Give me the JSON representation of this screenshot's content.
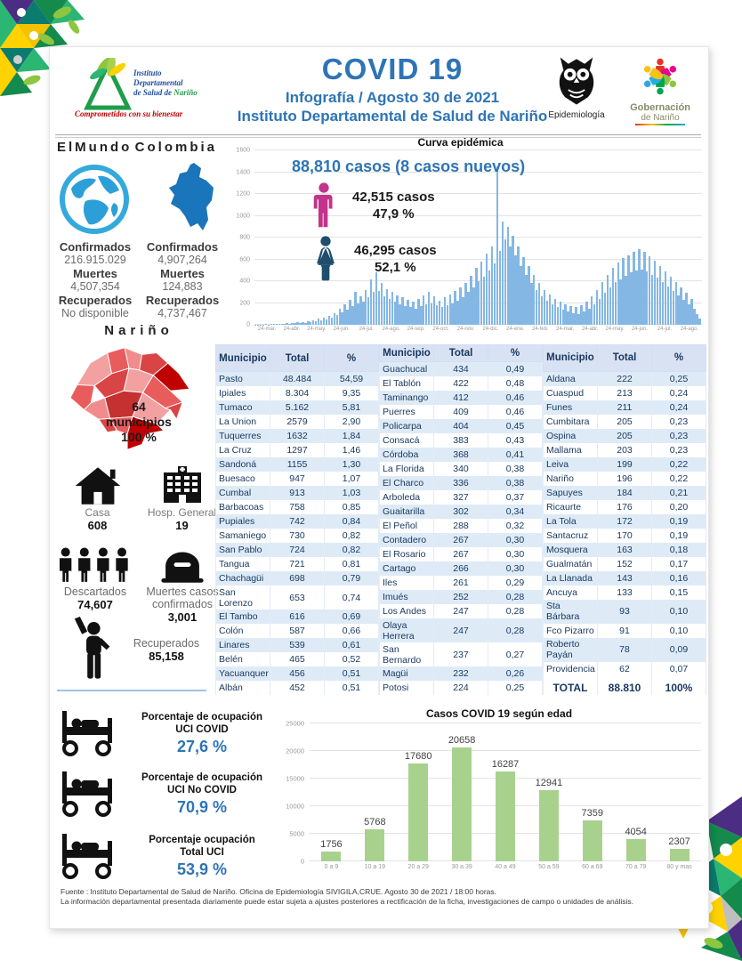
{
  "colors": {
    "accent_blue": "#2E74B5",
    "epi_bar": "#85B7E4",
    "age_bar": "#A9D18E",
    "male_pink": "#C2348B",
    "female_navy": "#1F4E6E",
    "table_text": "#17375E",
    "map_red": "#D94545"
  },
  "header": {
    "title": "COVID 19",
    "subtitle1": "Infografía / Agosto 30 de 2021",
    "subtitle2": "Instituto Departamental de Salud de Nariño",
    "inst_logo": {
      "line1": "Instituto",
      "line2": "Departamental",
      "line3a": "de Salud de ",
      "line3b": "Nariño",
      "tagline": "Comprometidos con su bienestar"
    },
    "owl_label": "Epidemiología",
    "gov_line1": "Gobernación",
    "gov_line2": "de Nariño"
  },
  "world": {
    "title": "ElMundo",
    "confirmados_label": "Confirmados",
    "confirmados": "216.915.029",
    "muertes_label": "Muertes",
    "muertes": "4,507,354",
    "recuperados_label": "Recuperados",
    "recuperados": "No disponible"
  },
  "colombia": {
    "title": "Colombia",
    "confirmados_label": "Confirmados",
    "confirmados": "4,907,264",
    "muertes_label": "Muertes",
    "muertes": "124,883",
    "recuperados_label": "Recuperados",
    "recuperados": "4,737,467"
  },
  "narino": {
    "title": "Nariño",
    "municipios_count": "64",
    "municipios_label": "municipios",
    "municipios_pct": "100 %",
    "casa_label": "Casa",
    "casa_value": "608",
    "hosp_label": "Hosp. General",
    "hosp_value": "19",
    "descartados_label": "Descartados",
    "descartados_value": "74,607",
    "muertes_label": "Muertes casos confirmados",
    "muertes_value": "3,001",
    "recuperados_label": "Recuperados",
    "recuperados_value": "85,158"
  },
  "epi": {
    "headline": "88,810 casos (8 casos nuevos)",
    "male_casos": "42,515 casos",
    "male_pct": "47,9 %",
    "female_casos": "46,295 casos",
    "female_pct": "52,1 %"
  },
  "chart_data": [
    {
      "id": "curva_epidemica",
      "type": "bar",
      "title": "Curva epidémica",
      "ylabel": "",
      "xlabel": "",
      "ylim": [
        0,
        1600
      ],
      "yticks": [
        0,
        200,
        400,
        600,
        800,
        1000,
        1200,
        1400,
        1600
      ],
      "x_tick_labels": [
        "24-mar.",
        "24-abr.",
        "24-may.",
        "24-jun.",
        "24-jul.",
        "24-ago.",
        "24-sep.",
        "24-oct.",
        "24-nov.",
        "24-dic.",
        "24-ene.",
        "24-feb.",
        "24-mar.",
        "24-abr.",
        "24-may.",
        "24-jun.",
        "24-jul.",
        "24-ago."
      ],
      "values": [
        3,
        2,
        4,
        3,
        5,
        4,
        6,
        5,
        8,
        6,
        10,
        8,
        14,
        11,
        18,
        14,
        22,
        17,
        26,
        20,
        32,
        25,
        42,
        33,
        55,
        42,
        68,
        52,
        85,
        65,
        110,
        90,
        150,
        115,
        190,
        140,
        230,
        170,
        300,
        200,
        260,
        210,
        320,
        250,
        420,
        300,
        480,
        310,
        380,
        260,
        330,
        240,
        300,
        210,
        270,
        190,
        250,
        170,
        230,
        160,
        210,
        150,
        240,
        170,
        270,
        190,
        300,
        200,
        260,
        180,
        220,
        160,
        250,
        180,
        280,
        200,
        310,
        220,
        340,
        250,
        380,
        300,
        450,
        340,
        520,
        400,
        580,
        440,
        650,
        500,
        720,
        560,
        1450,
        680,
        950,
        780,
        900,
        720,
        820,
        640,
        720,
        540,
        620,
        460,
        540,
        380,
        460,
        320,
        380,
        260,
        320,
        220,
        280,
        190,
        240,
        160,
        210,
        140,
        190,
        120,
        170,
        110,
        160,
        100,
        180,
        120,
        210,
        150,
        260,
        190,
        320,
        240,
        390,
        290,
        460,
        340,
        520,
        390,
        570,
        420,
        610,
        450,
        640,
        480,
        670,
        500,
        690,
        510,
        670,
        490,
        630,
        460,
        590,
        430,
        540,
        390,
        490,
        350,
        440,
        310,
        390,
        270,
        340,
        230,
        290,
        190,
        240,
        150,
        100,
        60
      ],
      "bar_color": "#85B7E4"
    },
    {
      "id": "casos_por_edad",
      "type": "bar",
      "title": "Casos COVID 19  según edad",
      "categories": [
        "0 a 9",
        "10 a 19",
        "20 a 29",
        "30 a 39",
        "40 a 49",
        "50 a 59",
        "60 a 69",
        "70 a 79",
        "80 y mas"
      ],
      "values": [
        1756,
        5768,
        17680,
        20658,
        16287,
        12941,
        7359,
        4054,
        2307
      ],
      "ylim": [
        0,
        25000
      ],
      "yticks": [
        0,
        5000,
        10000,
        15000,
        20000,
        25000
      ],
      "bar_color": "#A9D18E"
    }
  ],
  "table": {
    "headers": [
      "Municipio",
      "Total",
      "%"
    ],
    "group1": [
      [
        "Pasto",
        "48.484",
        "54,59"
      ],
      [
        "Ipiales",
        "8.304",
        "9,35"
      ],
      [
        "Tumaco",
        "5.162",
        "5,81"
      ],
      [
        "La Union",
        "2579",
        "2,90"
      ],
      [
        "Tuquerres",
        "1632",
        "1,84"
      ],
      [
        "La Cruz",
        "1297",
        "1,46"
      ],
      [
        "Sandoná",
        "1155",
        "1,30"
      ],
      [
        "Buesaco",
        "947",
        "1,07"
      ],
      [
        "Cumbal",
        "913",
        "1,03"
      ],
      [
        "Barbacoas",
        "758",
        "0,85"
      ],
      [
        "Pupiales",
        "742",
        "0,84"
      ],
      [
        "Samaniego",
        "730",
        "0,82"
      ],
      [
        "San Pablo",
        "724",
        "0,82"
      ],
      [
        "Tangua",
        "721",
        "0,81"
      ],
      [
        "Chachagüi",
        "698",
        "0,79"
      ],
      [
        "San Lorenzo",
        "653",
        "0,74"
      ],
      [
        "El Tambo",
        "616",
        "0,69"
      ],
      [
        "Colón",
        "587",
        "0,66"
      ],
      [
        "Linares",
        "539",
        "0,61"
      ],
      [
        "Belén",
        "465",
        "0,52"
      ],
      [
        "Yacuanquer",
        "456",
        "0,51"
      ],
      [
        "Albán",
        "452",
        "0,51"
      ]
    ],
    "group2": [
      [
        "Guachucal",
        "434",
        "0,49"
      ],
      [
        "El Tablón",
        "422",
        "0,48"
      ],
      [
        "Taminango",
        "412",
        "0,46"
      ],
      [
        "Puerres",
        "409",
        "0,46"
      ],
      [
        "Policarpa",
        "404",
        "0,45"
      ],
      [
        "Consacá",
        "383",
        "0,43"
      ],
      [
        "Córdoba",
        "368",
        "0,41"
      ],
      [
        "La Florida",
        "340",
        "0,38"
      ],
      [
        "El Charco",
        "336",
        "0,38"
      ],
      [
        "Arboleda",
        "327",
        "0,37"
      ],
      [
        "Guaitarilla",
        "302",
        "0,34"
      ],
      [
        "El Peñol",
        "288",
        "0,32"
      ],
      [
        "Contadero",
        "267",
        "0,30"
      ],
      [
        "El Rosario",
        "267",
        "0,30"
      ],
      [
        "Cartago",
        "266",
        "0,30"
      ],
      [
        "Iles",
        "261",
        "0,29"
      ],
      [
        "Imués",
        "252",
        "0,28"
      ],
      [
        "Los Andes",
        "247",
        "0,28"
      ],
      [
        "Olaya Herrera",
        "247",
        "0,28"
      ],
      [
        "San Bernardo",
        "237",
        "0,27"
      ],
      [
        "Magüi",
        "232",
        "0,26"
      ],
      [
        "Potosi",
        "224",
        "0,25"
      ]
    ],
    "group3": [
      [
        "Aldana",
        "222",
        "0,25"
      ],
      [
        "Cuaspud",
        "213",
        "0,24"
      ],
      [
        "Funes",
        "211",
        "0,24"
      ],
      [
        "Cumbitara",
        "205",
        "0,23"
      ],
      [
        "Ospina",
        "205",
        "0,23"
      ],
      [
        "Mallama",
        "203",
        "0,23"
      ],
      [
        "Leiva",
        "199",
        "0,22"
      ],
      [
        "Nariño",
        "196",
        "0,22"
      ],
      [
        "Sapuyes",
        "184",
        "0,21"
      ],
      [
        "Ricaurte",
        "176",
        "0,20"
      ],
      [
        "La Tola",
        "172",
        "0,19"
      ],
      [
        "Santacruz",
        "170",
        "0,19"
      ],
      [
        "Mosquera",
        "163",
        "0,18"
      ],
      [
        "Gualmatán",
        "152",
        "0,17"
      ],
      [
        "La Llanada",
        "143",
        "0,16"
      ],
      [
        "Ancuya",
        "133",
        "0,15"
      ],
      [
        "Sta Bárbara",
        "93",
        "0,10"
      ],
      [
        "Fco Pizarro",
        "91",
        "0,10"
      ],
      [
        "Roberto Payán",
        "78",
        "0,09"
      ],
      [
        "Providencia",
        "62",
        "0,07"
      ]
    ],
    "total_row": [
      "TOTAL",
      "88.810",
      "100%"
    ]
  },
  "uci": {
    "items": [
      {
        "line1": "Porcentaje de ocupación",
        "line2": "UCI COVID",
        "value": "27,6 %"
      },
      {
        "line1": "Porcentaje de ocupación",
        "line2": "UCI No COVID",
        "value": "70,9 %"
      },
      {
        "line1": "Porcentaje ocupación",
        "line2": "Total UCI",
        "value": "53,9 %"
      }
    ]
  },
  "footer": {
    "line1": "Fuente : Instituto Departamental de Salud de Nariño. Oficina de Epidemiología SIVIGILA,CRUE.  Agosto 30 de 2021 / 18:00  horas.",
    "line2": "La información departamental presentada diariamente puede estar sujeta a ajustes posteriores a  rectificación de la ficha, investigaciones de campo o unidades de análisis."
  }
}
